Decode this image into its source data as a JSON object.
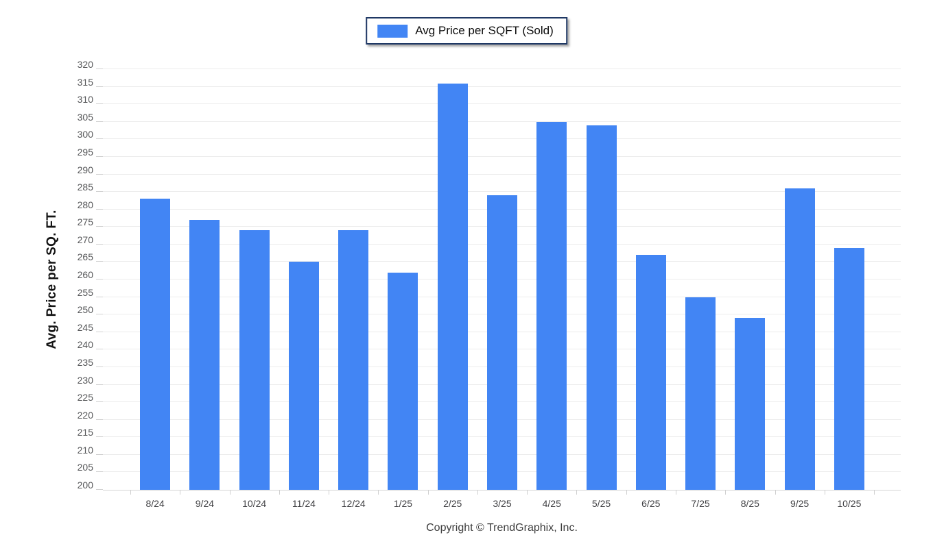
{
  "legend": {
    "label": "Avg Price per SQFT (Sold)"
  },
  "chart_data": {
    "type": "bar",
    "title": "",
    "categories": [
      "8/24",
      "9/24",
      "10/24",
      "11/24",
      "12/24",
      "1/25",
      "2/25",
      "3/25",
      "4/25",
      "5/25",
      "6/25",
      "7/25",
      "8/25",
      "9/25",
      "10/25"
    ],
    "series": [
      {
        "name": "Avg Price per SQFT (Sold)",
        "values": [
          283,
          277,
          274,
          265,
          274,
          262,
          316,
          284,
          305,
          304,
          267,
          255,
          249,
          286,
          269
        ]
      }
    ],
    "xlabel": "",
    "ylabel": "Avg. Price per SQ. FT.",
    "ylim": [
      200,
      320
    ],
    "ytick_step": 5,
    "yticks": [
      200,
      205,
      210,
      215,
      220,
      225,
      230,
      235,
      240,
      245,
      250,
      255,
      260,
      265,
      270,
      275,
      280,
      285,
      290,
      295,
      300,
      305,
      310,
      315,
      320
    ],
    "grid": "horizontal",
    "legend_position": "top-center"
  },
  "colors": {
    "bar": "#4285F4",
    "legend_border": "#1f3864",
    "gridline": "#ececec",
    "axis_line": "#d4d4d4",
    "y_tick_text": "#57585a",
    "x_tick_text": "#3f3f42"
  },
  "footer": {
    "copyright": "Copyright © TrendGraphix, Inc."
  }
}
